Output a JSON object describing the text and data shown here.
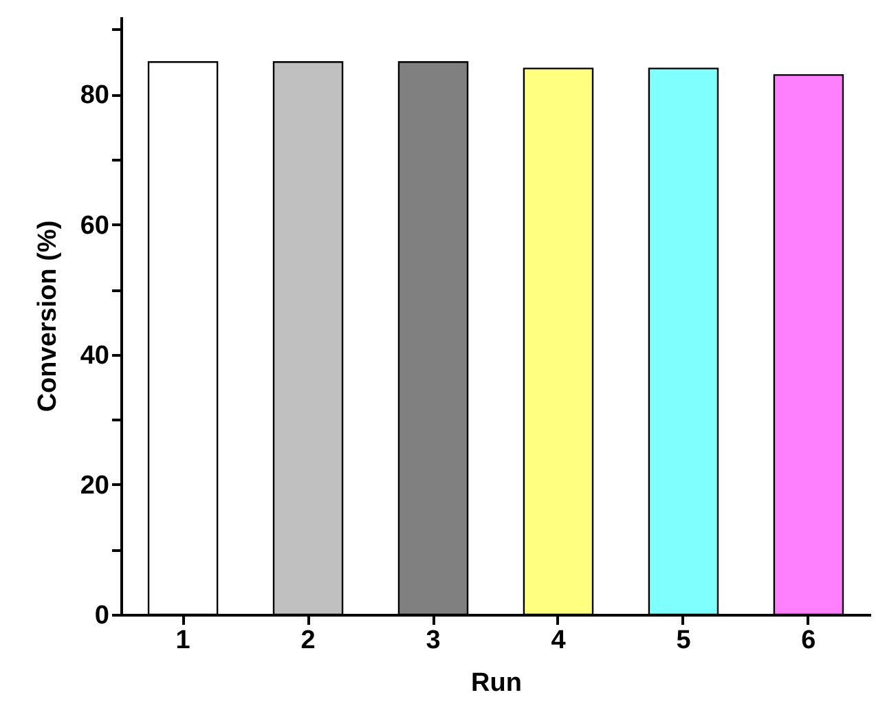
{
  "chart_data": {
    "type": "bar",
    "xlabel": "Run",
    "ylabel": "Conversion (%)",
    "categories": [
      "1",
      "2",
      "3",
      "4",
      "5",
      "6"
    ],
    "values": [
      85,
      85,
      85,
      84,
      84,
      83
    ],
    "colors": [
      "#ffffff",
      "#c0c0c0",
      "#808080",
      "#ffff80",
      "#80ffff",
      "#ff80ff"
    ],
    "ylim": [
      0,
      92
    ],
    "yticks": [
      0,
      {
        "value": 10,
        "label": null
      },
      20,
      {
        "value": 30,
        "label": null
      },
      40,
      {
        "value": 50,
        "label": null
      },
      60,
      {
        "value": 70,
        "label": null
      },
      80,
      {
        "value": 90,
        "label": null
      }
    ],
    "grid": false
  }
}
